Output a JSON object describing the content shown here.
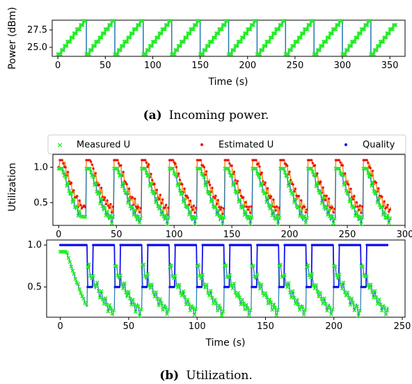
{
  "colors": {
    "line_blue": "#1f77b4",
    "line_orange": "#ff7f0e",
    "measured_green": "#22ee22",
    "estimated_red": "#ee1111",
    "quality_blue": "#1111ee"
  },
  "captions": {
    "a_label": "(a)",
    "a_text": "Incoming power.",
    "b_label": "(b)",
    "b_text": "Utilization."
  },
  "legend": {
    "measured": "Measured U",
    "estimated": "Estimated U",
    "quality": "Quality"
  },
  "chart_data": [
    {
      "id": "power",
      "type": "line",
      "xlabel": "Time (s)",
      "ylabel": "Power (dBm)",
      "xlim": [
        -6,
        366
      ],
      "ylim": [
        23.7,
        28.9
      ],
      "xticks": [
        0,
        50,
        100,
        150,
        200,
        250,
        300,
        350
      ],
      "yticks": [
        25.0,
        27.5
      ],
      "ytick_labels": [
        "25.0",
        "27.5"
      ],
      "period": 30,
      "levels": [
        24.0,
        24.6,
        25.2,
        25.8,
        26.4,
        27.0,
        27.6,
        28.2,
        28.8
      ],
      "x_end": 356,
      "series": [
        {
          "name": "",
          "marker": "x",
          "color": "#22ee22"
        }
      ]
    },
    {
      "id": "utilization_top",
      "type": "line",
      "xlabel": "",
      "ylabel": "Utilization",
      "xlim": [
        -5,
        300
      ],
      "ylim": [
        0.18,
        1.18
      ],
      "xticks": [
        0,
        50,
        100,
        150,
        200,
        250,
        300
      ],
      "yticks": [
        0.5,
        1.0
      ],
      "ytick_labels": [
        "0.5",
        "1.0"
      ],
      "period": 24,
      "cycles": 12,
      "measured_peak": 0.95,
      "measured_floor": 0.24,
      "estimated_plateau": 1.1,
      "series": [
        {
          "name": "Measured U",
          "marker": "x",
          "color": "#22ee22"
        },
        {
          "name": "Estimated U",
          "marker": "o",
          "color": "#ee1111"
        }
      ]
    },
    {
      "id": "utilization_bottom",
      "type": "line",
      "xlabel": "Time (s)",
      "ylabel": "",
      "xlim": [
        -10,
        252
      ],
      "ylim": [
        0.14,
        1.06
      ],
      "xticks": [
        0,
        50,
        100,
        150,
        200,
        250
      ],
      "yticks": [
        0.5,
        1.0
      ],
      "ytick_labels": [
        "0.5",
        "1.0"
      ],
      "period": 20,
      "cycles": 12,
      "quality_high": 1.0,
      "quality_low": 0.5,
      "measured_peak": 0.9,
      "measured_floor": 0.2,
      "series": [
        {
          "name": "Measured U",
          "marker": "x",
          "color": "#22ee22"
        },
        {
          "name": "Quality",
          "marker": "o",
          "color": "#1111ee"
        }
      ]
    }
  ]
}
